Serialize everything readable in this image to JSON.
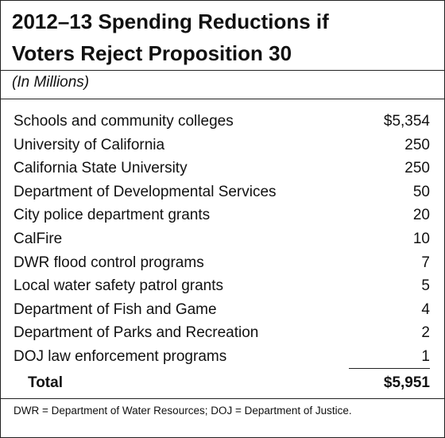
{
  "header": {
    "title_lines": [
      "2012–13 Spending Reductions if",
      "Voters Reject Proposition 30"
    ],
    "subtitle": "(In Millions)"
  },
  "table": {
    "rows": [
      [
        "Schools and community colleges",
        "$5,354"
      ],
      [
        "University of California",
        "250"
      ],
      [
        "California State University",
        "250"
      ],
      [
        "Department of Developmental Services",
        "50"
      ],
      [
        "City police department grants",
        "20"
      ],
      [
        "CalFire",
        "10"
      ],
      [
        "DWR flood control programs",
        "7"
      ],
      [
        "Local water safety patrol grants",
        "5"
      ],
      [
        "Department of Fish and Game",
        "4"
      ],
      [
        "Department of Parks and Recreation",
        "2"
      ],
      [
        "DOJ law enforcement programs",
        "1"
      ]
    ],
    "total": [
      "Total",
      "$5,951"
    ]
  },
  "footnote": "DWR = Department of Water Resources; DOJ = Department of Justice."
}
